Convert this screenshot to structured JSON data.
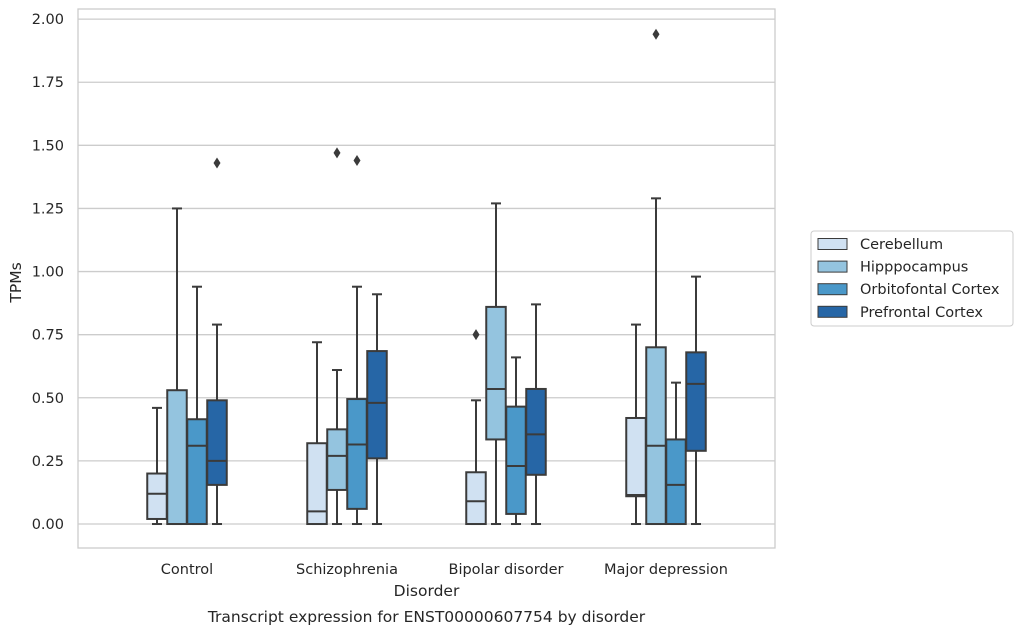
{
  "chart_data": {
    "type": "box",
    "title": "Transcript expression for ENST00000607754 by disorder",
    "xlabel": "Disorder",
    "ylabel": "TPMs",
    "ylim": [
      -0.095,
      2.04
    ],
    "yticks": [
      "0.00",
      "0.25",
      "0.50",
      "0.75",
      "1.00",
      "1.25",
      "1.50",
      "1.75",
      "2.00"
    ],
    "grid": true,
    "legend_position": "right",
    "categories": [
      "Control",
      "Schizophrenia",
      "Bipolar disorder",
      "Major depression"
    ],
    "series": [
      {
        "name": "Cerebellum",
        "color": "#d0e1f2",
        "boxes": [
          {
            "whisker_low": 0.0,
            "q1": 0.02,
            "median": 0.12,
            "q3": 0.2,
            "whisker_high": 0.46,
            "outliers": []
          },
          {
            "whisker_low": 0.0,
            "q1": 0.0,
            "median": 0.05,
            "q3": 0.32,
            "whisker_high": 0.72,
            "outliers": []
          },
          {
            "whisker_low": 0.0,
            "q1": 0.0,
            "median": 0.09,
            "q3": 0.205,
            "whisker_high": 0.49,
            "outliers": [
              0.75
            ]
          },
          {
            "whisker_low": 0.0,
            "q1": 0.11,
            "median": 0.115,
            "q3": 0.42,
            "whisker_high": 0.79,
            "outliers": []
          }
        ]
      },
      {
        "name": "Hipppocampus",
        "color": "#94c4df",
        "boxes": [
          {
            "whisker_low": 0.0,
            "q1": 0.0,
            "median": 0.0,
            "q3": 0.53,
            "whisker_high": 1.25,
            "outliers": []
          },
          {
            "whisker_low": 0.0,
            "q1": 0.135,
            "median": 0.27,
            "q3": 0.375,
            "whisker_high": 0.61,
            "outliers": [
              1.47
            ]
          },
          {
            "whisker_low": 0.0,
            "q1": 0.335,
            "median": 0.535,
            "q3": 0.86,
            "whisker_high": 1.27,
            "outliers": []
          },
          {
            "whisker_low": 0.0,
            "q1": 0.0,
            "median": 0.31,
            "q3": 0.7,
            "whisker_high": 1.29,
            "outliers": [
              1.94
            ]
          }
        ]
      },
      {
        "name": "Orbitofontal Cortex",
        "color": "#4a98c9",
        "boxes": [
          {
            "whisker_low": 0.0,
            "q1": 0.0,
            "median": 0.31,
            "q3": 0.415,
            "whisker_high": 0.94,
            "outliers": []
          },
          {
            "whisker_low": 0.0,
            "q1": 0.06,
            "median": 0.315,
            "q3": 0.495,
            "whisker_high": 0.94,
            "outliers": [
              1.44
            ]
          },
          {
            "whisker_low": 0.0,
            "q1": 0.04,
            "median": 0.23,
            "q3": 0.465,
            "whisker_high": 0.66,
            "outliers": []
          },
          {
            "whisker_low": 0.0,
            "q1": 0.0,
            "median": 0.155,
            "q3": 0.335,
            "whisker_high": 0.56,
            "outliers": []
          }
        ]
      },
      {
        "name": "Prefrontal Cortex",
        "color": "#2666a6",
        "boxes": [
          {
            "whisker_low": 0.0,
            "q1": 0.155,
            "median": 0.25,
            "q3": 0.49,
            "whisker_high": 0.79,
            "outliers": [
              1.43
            ]
          },
          {
            "whisker_low": 0.0,
            "q1": 0.26,
            "median": 0.48,
            "q3": 0.685,
            "whisker_high": 0.91,
            "outliers": []
          },
          {
            "whisker_low": 0.0,
            "q1": 0.195,
            "median": 0.355,
            "q3": 0.535,
            "whisker_high": 0.87,
            "outliers": []
          },
          {
            "whisker_low": 0.0,
            "q1": 0.29,
            "median": 0.555,
            "q3": 0.68,
            "whisker_high": 0.98,
            "outliers": []
          }
        ]
      }
    ]
  }
}
